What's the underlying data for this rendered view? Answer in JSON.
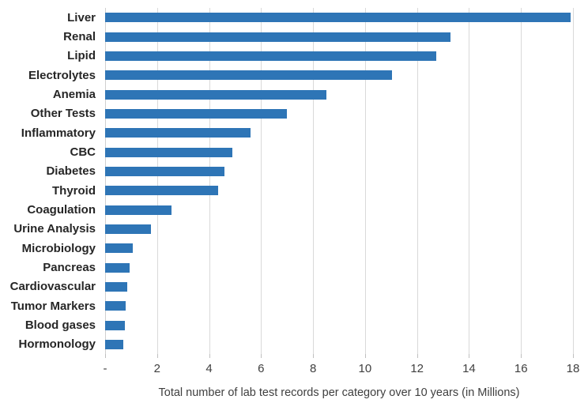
{
  "chart_data": {
    "type": "bar",
    "orientation": "horizontal",
    "title": "",
    "xlabel": "Total number of lab test records per category over 10 years (in Millions)",
    "ylabel": "",
    "categories": [
      "Liver",
      "Renal",
      "Lipid",
      "Electrolytes",
      "Anemia",
      "Other Tests",
      "Inflammatory",
      "CBC",
      "Diabetes",
      "Thyroid",
      "Coagulation",
      "Urine Analysis",
      "Microbiology",
      "Pancreas",
      "Cardiovascular",
      "Tumor Markers",
      "Blood gases",
      "Hormonology"
    ],
    "values": [
      17.9,
      13.3,
      12.75,
      11.05,
      8.5,
      7.0,
      5.6,
      4.9,
      4.6,
      4.35,
      2.55,
      1.75,
      1.05,
      0.95,
      0.85,
      0.8,
      0.75,
      0.7
    ],
    "xlim": [
      0,
      18
    ],
    "x_tick_labels": [
      "-",
      "2",
      "4",
      "6",
      "8",
      "10",
      "12",
      "14",
      "16",
      "18"
    ],
    "x_tick_values": [
      0,
      2,
      4,
      6,
      8,
      10,
      12,
      14,
      16,
      18
    ],
    "grid": true,
    "legend": "none",
    "bar_color": "#2E75B6",
    "gridline_color": "#d9d9d9"
  }
}
